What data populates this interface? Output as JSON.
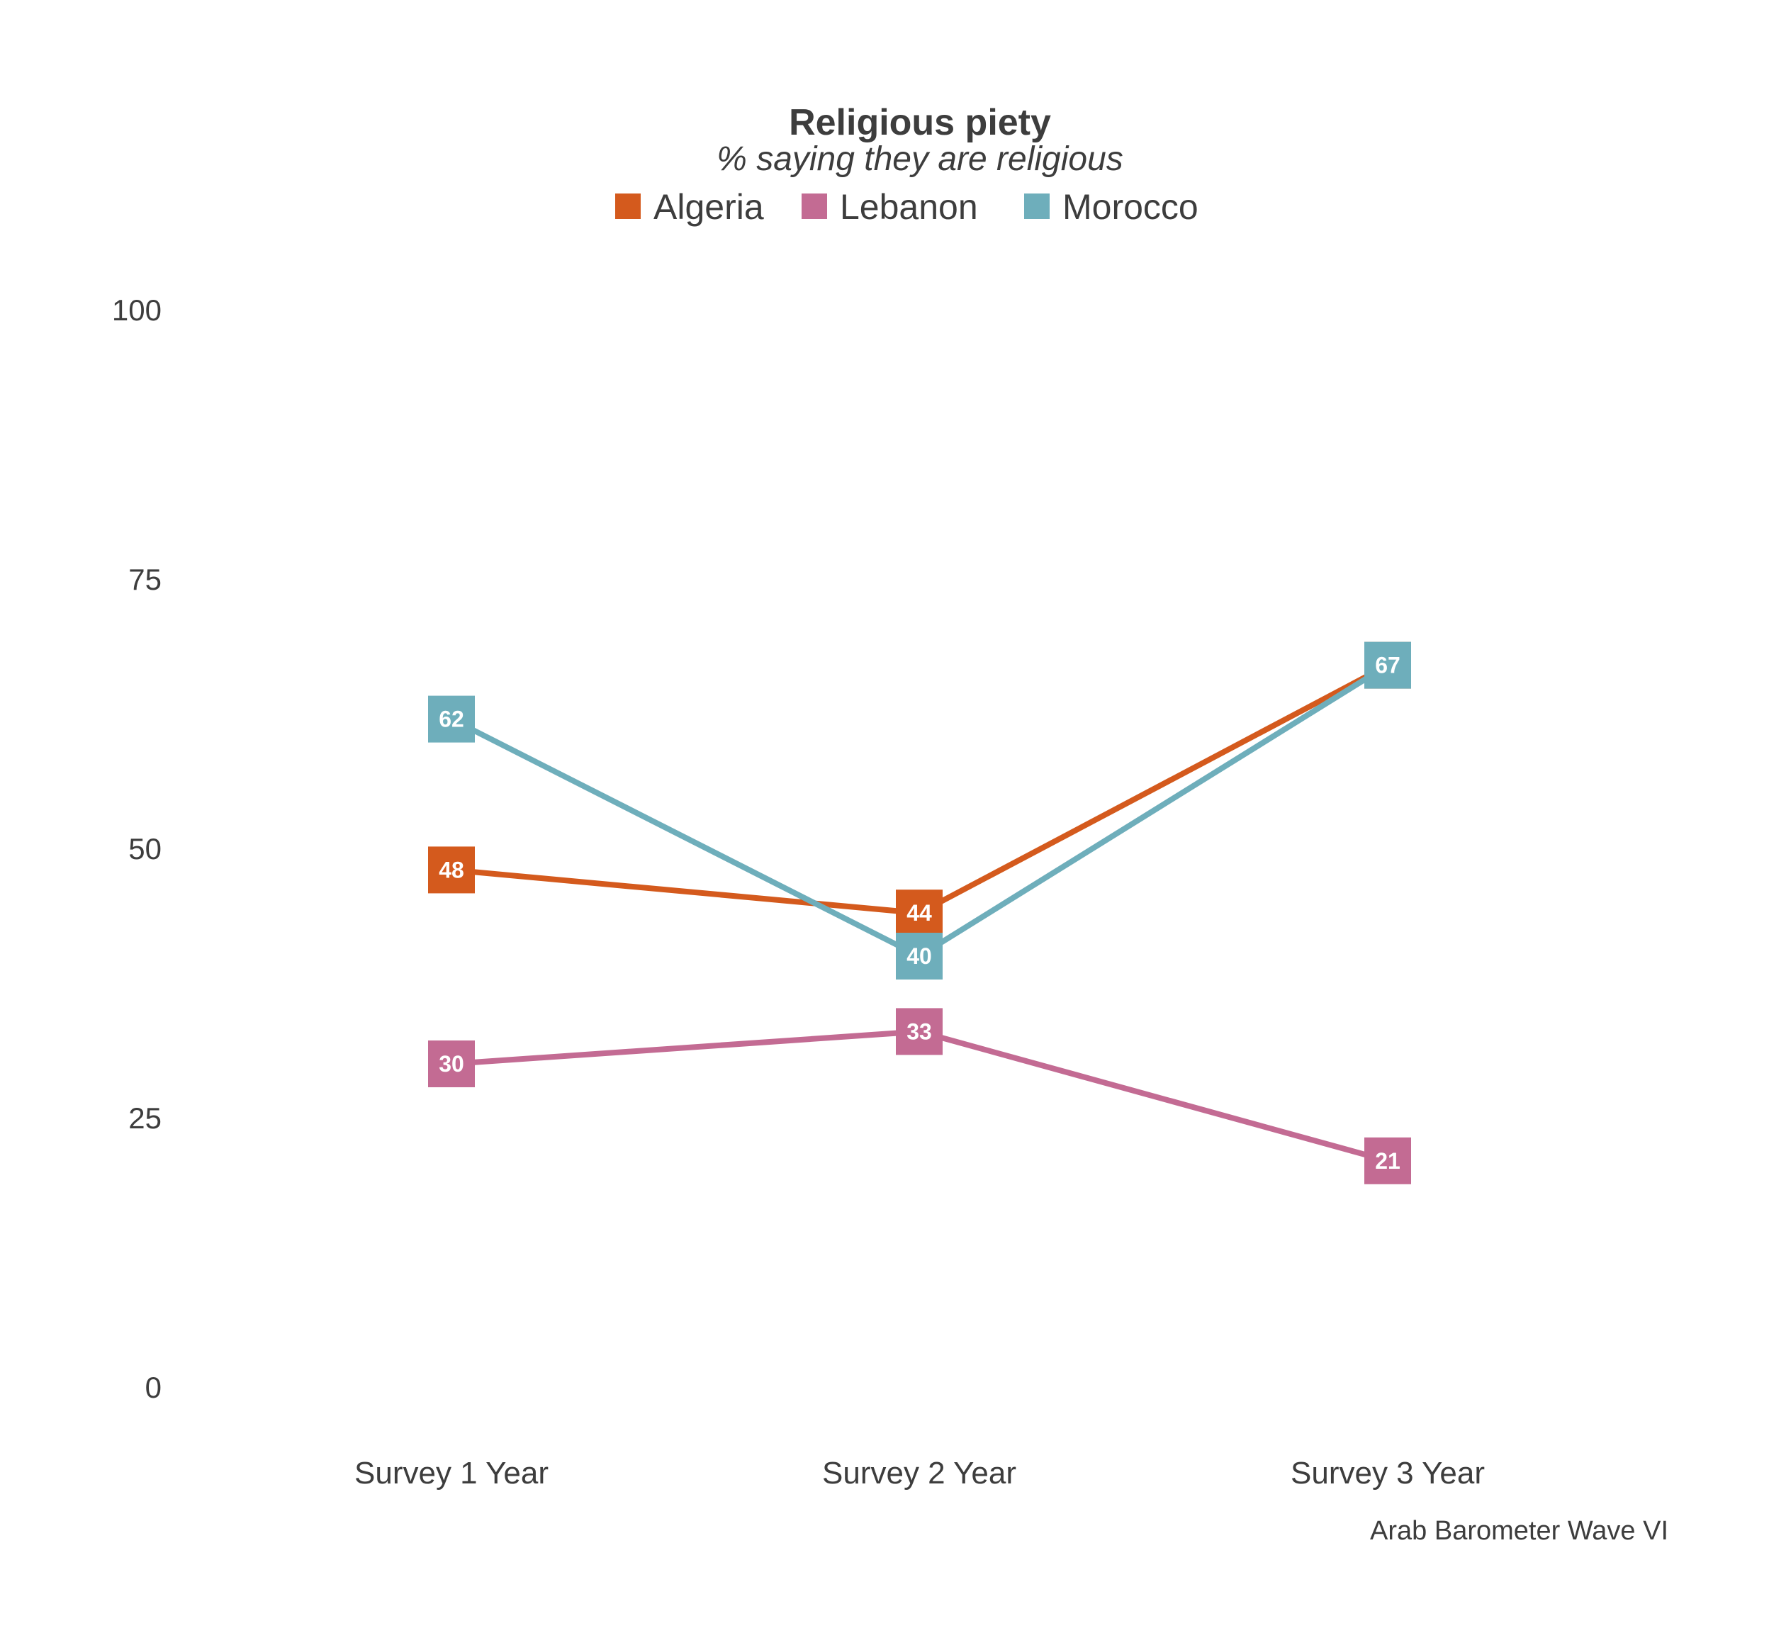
{
  "chart_data": {
    "type": "line",
    "title": "Religious piety",
    "subtitle": "% saying they are religious",
    "caption": "Arab Barometer Wave VI",
    "categories": [
      "Survey 1 Year",
      "Survey 2 Year",
      "Survey 3 Year"
    ],
    "yticks": [
      0,
      25,
      50,
      75,
      100
    ],
    "ylim": [
      0,
      100
    ],
    "grid": false,
    "legend_position": "top",
    "series": [
      {
        "name": "Algeria",
        "color": "#d45a1d",
        "values": [
          48,
          44,
          67
        ]
      },
      {
        "name": "Lebanon",
        "color": "#c36b93",
        "values": [
          30,
          33,
          21
        ]
      },
      {
        "name": "Morocco",
        "color": "#6eaebb",
        "values": [
          62,
          40,
          67
        ]
      }
    ]
  }
}
